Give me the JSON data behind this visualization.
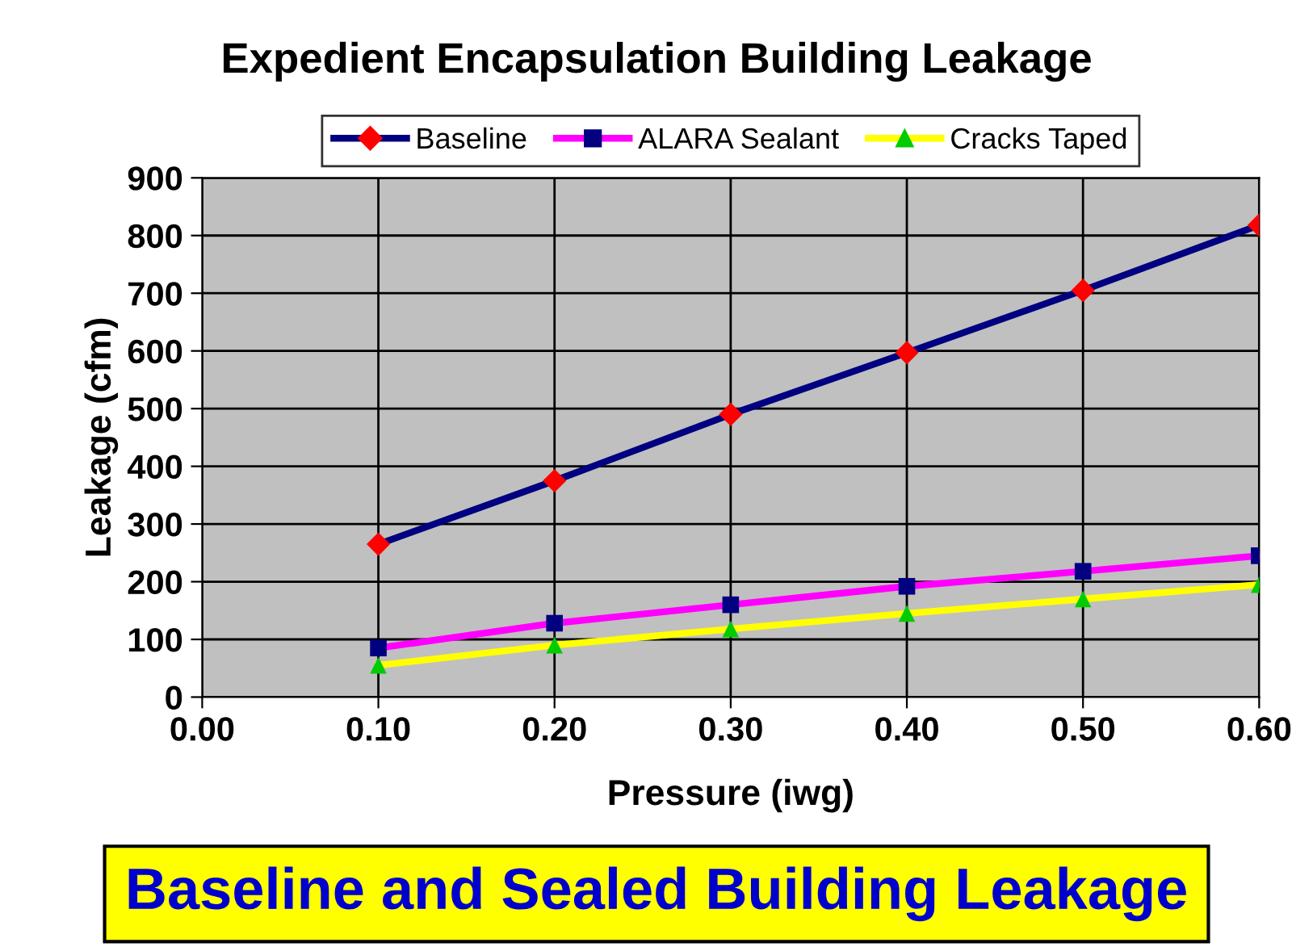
{
  "chart_data": {
    "type": "line",
    "title": "Expedient Encapsulation Building Leakage",
    "xlabel": "Pressure (iwg)",
    "ylabel": "Leakage (cfm)",
    "x": [
      0.1,
      0.2,
      0.3,
      0.4,
      0.5,
      0.6
    ],
    "series": [
      {
        "name": "Baseline",
        "color": "#000080",
        "marker": "diamond",
        "colors": [
          "#ff0000",
          "#ff0000",
          "#ff0000",
          "#ff0000",
          "#ff0000",
          "#ff0000"
        ],
        "values": [
          265,
          375,
          490,
          597,
          705,
          818
        ]
      },
      {
        "name": "ALARA Sealant",
        "color": "#ff00ff",
        "marker": "square",
        "colors": [
          "#000080",
          "#000080",
          "#000080",
          "#000080",
          "#000080",
          "#000080"
        ],
        "values": [
          85,
          128,
          160,
          192,
          218,
          245
        ]
      },
      {
        "name": "Cracks Taped",
        "color": "#ffff00",
        "marker": "triangle",
        "colors": [
          "#00cc00",
          "#00cc00",
          "#00cc00",
          "#00cc00",
          "#00cc00",
          "#00cc00"
        ],
        "values": [
          55,
          90,
          118,
          145,
          170,
          195
        ]
      }
    ],
    "xlim": [
      0,
      0.6
    ],
    "xticks": [
      {
        "value": 0,
        "label": "0.00"
      },
      {
        "value": 0.1,
        "label": "0.10"
      },
      {
        "value": 0.2,
        "label": "0.20"
      },
      {
        "value": 0.3,
        "label": "0.30"
      },
      {
        "value": 0.4,
        "label": "0.40"
      },
      {
        "value": 0.5,
        "label": "0.50"
      },
      {
        "value": 0.6,
        "label": "0.60"
      }
    ],
    "ylim": [
      0,
      900
    ],
    "yticks": [
      0,
      100,
      200,
      300,
      400,
      500,
      600,
      700,
      800,
      900
    ],
    "grid": true,
    "legend": "top",
    "line_style": "solid",
    "annotations": [
      "Baseline and Sealed Building Leakage"
    ]
  }
}
